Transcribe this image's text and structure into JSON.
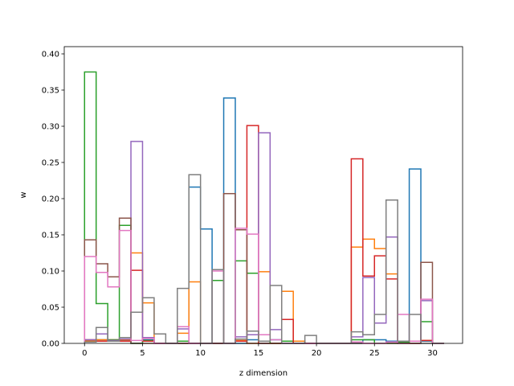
{
  "chart_data": {
    "type": "histogram-step",
    "xlabel": "z dimension",
    "ylabel": "w",
    "xlim": [
      -1.75,
      32.6
    ],
    "ylim": [
      0,
      0.41
    ],
    "xticks": [
      0,
      5,
      10,
      15,
      20,
      25,
      30
    ],
    "yticks": [
      0.0,
      0.05,
      0.1,
      0.15,
      0.2,
      0.25,
      0.3,
      0.35,
      0.4
    ],
    "grid": false,
    "legend": "none",
    "bin_edges": [
      0,
      1,
      2,
      3,
      4,
      5,
      6,
      7,
      8,
      9,
      10,
      11,
      12,
      13,
      14,
      15,
      16,
      17,
      18,
      19,
      20,
      21,
      22,
      23,
      24,
      25,
      26,
      27,
      28,
      29,
      30,
      31
    ],
    "series": [
      {
        "color": "#1f77b4",
        "values": [
          0.004,
          0.005,
          0.003,
          0.004,
          0,
          0.005,
          0,
          0,
          0,
          0.216,
          0.158,
          0,
          0.339,
          0,
          0.005,
          0,
          0.005,
          0,
          0.003,
          0,
          0,
          0,
          0,
          0,
          0.005,
          0.005,
          0.003,
          0.002,
          0.241,
          0.003,
          0
        ]
      },
      {
        "color": "#ff7f0e",
        "values": [
          0.003,
          0.005,
          0.005,
          0.005,
          0.125,
          0.056,
          0,
          0,
          0.014,
          0.085,
          0,
          0,
          0,
          0.004,
          0,
          0.099,
          0,
          0.072,
          0.003,
          0,
          0,
          0,
          0,
          0.133,
          0.144,
          0.131,
          0.096,
          0.002,
          0,
          0.004,
          0
        ]
      },
      {
        "color": "#2ca02c",
        "values": [
          0.375,
          0.055,
          0.005,
          0.163,
          0,
          0.004,
          0,
          0,
          0.003,
          0,
          0,
          0.087,
          0,
          0.114,
          0.097,
          0.003,
          0,
          0.003,
          0,
          0,
          0,
          0,
          0,
          0.005,
          0.005,
          0,
          0,
          0.002,
          0.003,
          0.03,
          0
        ]
      },
      {
        "color": "#d62728",
        "values": [
          0.005,
          0.003,
          0.004,
          0.003,
          0.101,
          0.003,
          0,
          0,
          0,
          0,
          0,
          0,
          0,
          0.003,
          0.301,
          0,
          0,
          0.033,
          0,
          0,
          0,
          0,
          0,
          0.255,
          0.093,
          0.121,
          0.089,
          0,
          0,
          0.004,
          0
        ]
      },
      {
        "color": "#9467bd",
        "values": [
          0.005,
          0.013,
          0.004,
          0.006,
          0.279,
          0.008,
          0,
          0,
          0.02,
          0,
          0,
          0,
          0,
          0.009,
          0.012,
          0.291,
          0.019,
          0,
          0,
          0,
          0,
          0,
          0,
          0.009,
          0.091,
          0.028,
          0.147,
          0,
          0,
          0.059,
          0
        ]
      },
      {
        "color": "#8c564b",
        "values": [
          0.143,
          0.11,
          0.092,
          0.173,
          0,
          0,
          0,
          0,
          0,
          0,
          0,
          0,
          0.207,
          0.157,
          0,
          0,
          0,
          0,
          0,
          0,
          0,
          0,
          0,
          0,
          0,
          0,
          0,
          0,
          0,
          0.112,
          0
        ]
      },
      {
        "color": "#e377c2",
        "values": [
          0.12,
          0.098,
          0.078,
          0.156,
          0.004,
          0.007,
          0,
          0,
          0.023,
          0,
          0,
          0.1,
          0,
          0.159,
          0.151,
          0.012,
          0.005,
          0,
          0,
          0,
          0,
          0,
          0,
          0.002,
          0,
          0,
          0.002,
          0.04,
          0.003,
          0.061,
          0
        ]
      },
      {
        "color": "#7f7f7f",
        "values": [
          0.002,
          0.022,
          0.003,
          0.008,
          0.043,
          0.063,
          0.013,
          0,
          0.076,
          0.233,
          0,
          0.102,
          0,
          0.006,
          0.017,
          0.003,
          0.08,
          0,
          0,
          0.011,
          0,
          0,
          0,
          0.016,
          0.012,
          0.04,
          0.198,
          0.003,
          0.04,
          0,
          0
        ]
      }
    ]
  }
}
